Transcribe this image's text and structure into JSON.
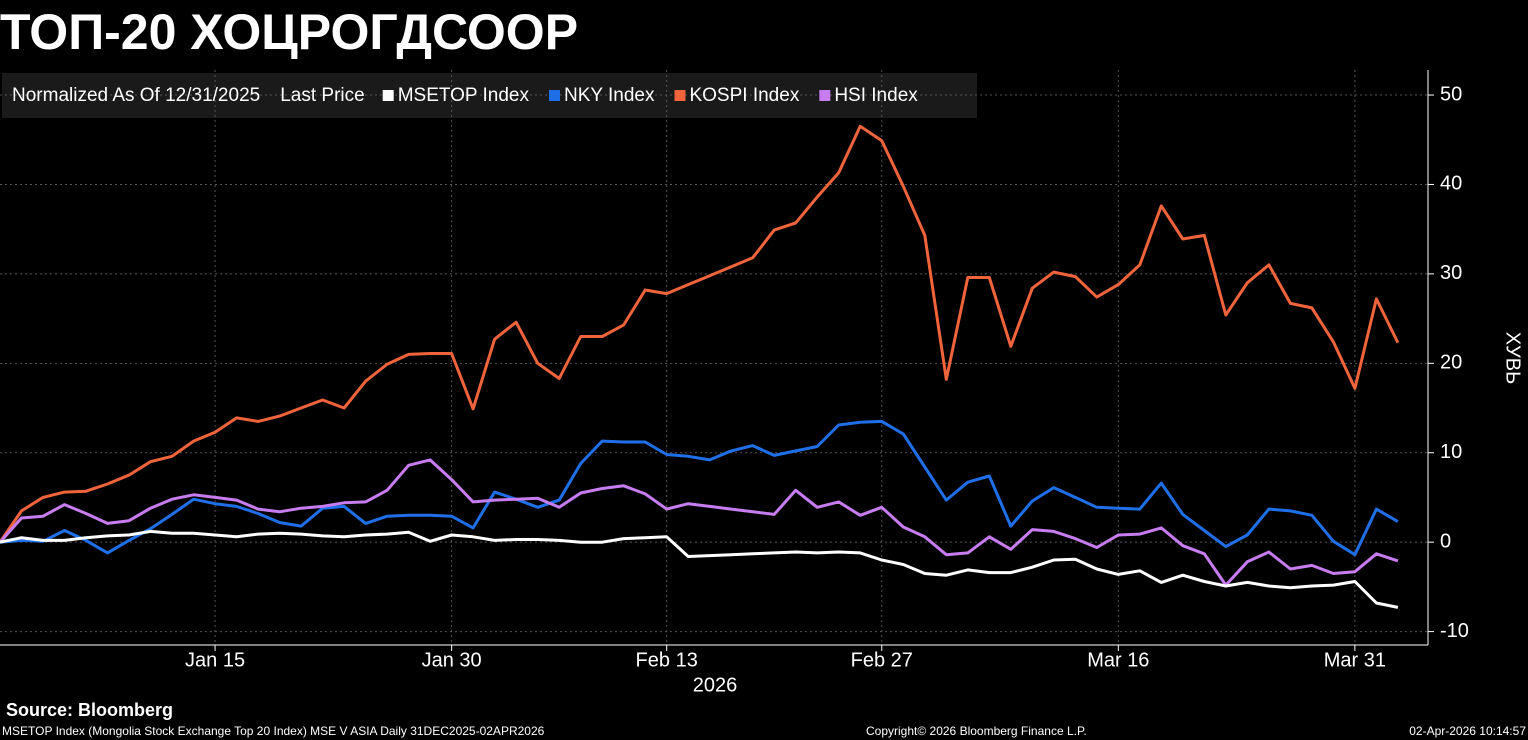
{
  "chart_data": {
    "type": "line",
    "title": "ТОП-20 ХОЦРОГДСООР",
    "legend_header": [
      "Normalized As Of 12/31/2025",
      "Last Price"
    ],
    "ylabel": "ХУВЬ",
    "xlabel": "2026",
    "source": "Source: Bloomberg",
    "description": "MSETOP Index (Mongolia Stock Exchange Top 20 Index) MSE V ASIA Daily 31DEC2025-02APR2026",
    "copyright": "Copyright© 2026 Bloomberg Finance L.P.",
    "timestamp": "02-Apr-2026 10:14:57",
    "ylim": [
      -11.5,
      52.8
    ],
    "yticks": [
      -10,
      0,
      10,
      20,
      30,
      40,
      50
    ],
    "xlim": [
      0,
      66.4
    ],
    "xticks": [
      {
        "value": 10,
        "label": "Jan 15"
      },
      {
        "value": 21,
        "label": "Jan 30"
      },
      {
        "value": 31,
        "label": "Feb 13"
      },
      {
        "value": 41,
        "label": "Feb 27"
      },
      {
        "value": 52,
        "label": "Mar 16"
      },
      {
        "value": 63,
        "label": "Mar 31"
      }
    ],
    "grid": true,
    "series": [
      {
        "name": "MSETOP Index",
        "color": "#ffffff",
        "values": [
          0,
          0.5,
          0.2,
          0.2,
          0.5,
          0.7,
          0.8,
          1.2,
          1,
          1,
          0.8,
          0.6,
          0.9,
          1,
          0.9,
          0.7,
          0.6,
          0.8,
          0.9,
          1.1,
          0.1,
          0.8,
          0.6,
          0.2,
          0.3,
          0.3,
          0.2,
          0,
          0,
          0.4,
          0.5,
          0.6,
          -1.6,
          -1.5,
          -1.4,
          -1.3,
          -1.2,
          -1.1,
          -1.2,
          -1.1,
          -1.2,
          -2,
          -2.5,
          -3.5,
          -3.7,
          -3.1,
          -3.4,
          -3.4,
          -2.8,
          -2,
          -1.9,
          -3,
          -3.6,
          -3.2,
          -4.5,
          -3.7,
          -4.4,
          -4.9,
          -4.5,
          -4.9,
          -5.1,
          -4.9,
          -4.8,
          -4.4,
          -6.8,
          -7.3
        ]
      },
      {
        "name": "NKY Index",
        "color": "#1f6fe8",
        "values": [
          0,
          0.2,
          0.1,
          1.3,
          0.2,
          -1.2,
          0.2,
          1.5,
          3.1,
          4.8,
          4.3,
          4,
          3.2,
          2.2,
          1.8,
          3.8,
          4,
          2.1,
          2.9,
          3,
          3,
          2.9,
          1.6,
          5.6,
          4.8,
          3.9,
          4.7,
          8.8,
          11.3,
          11.2,
          11.2,
          9.8,
          9.6,
          9.2,
          10.2,
          10.8,
          9.7,
          10.2,
          10.7,
          13.1,
          13.4,
          13.5,
          12.1,
          8.4,
          4.7,
          6.7,
          7.4,
          1.8,
          4.6,
          6.1,
          5,
          3.9,
          3.8,
          3.7,
          6.6,
          3.1,
          1.3,
          -0.5,
          0.8,
          3.7,
          3.5,
          3,
          0.1,
          -1.4,
          3.7,
          2.3
        ]
      },
      {
        "name": "KOSPI Index",
        "color": "#f0643c",
        "values": [
          0,
          3.5,
          5,
          5.6,
          5.7,
          6.5,
          7.5,
          9,
          9.6,
          11.3,
          12.3,
          13.9,
          13.5,
          14.1,
          15,
          15.9,
          15,
          18,
          19.9,
          21,
          21.1,
          21.1,
          14.9,
          22.7,
          24.6,
          20,
          18.3,
          23,
          23,
          24.3,
          28.2,
          27.8,
          28.8,
          29.8,
          30.8,
          31.8,
          34.9,
          35.7,
          38.6,
          41.3,
          46.5,
          44.9,
          39.8,
          34.3,
          18.2,
          29.6,
          29.6,
          21.9,
          28.4,
          30.2,
          29.7,
          27.4,
          28.8,
          31,
          37.6,
          33.9,
          34.3,
          25.4,
          29,
          31,
          26.7,
          26.2,
          22.4,
          17.2,
          27.2,
          22.3
        ]
      },
      {
        "name": "HSI Index",
        "color": "#c77cf0",
        "values": [
          0,
          2.7,
          2.9,
          4.2,
          3.2,
          2.1,
          2.4,
          3.8,
          4.8,
          5.3,
          5,
          4.7,
          3.7,
          3.4,
          3.8,
          4,
          4.4,
          4.5,
          5.8,
          8.6,
          9.2,
          7,
          4.5,
          4.7,
          4.8,
          4.9,
          3.9,
          5.5,
          6,
          6.3,
          5.4,
          3.7,
          4.3,
          4,
          3.7,
          3.4,
          3.1,
          5.8,
          3.9,
          4.5,
          3,
          3.9,
          1.7,
          0.6,
          -1.4,
          -1.2,
          0.6,
          -0.8,
          1.4,
          1.2,
          0.4,
          -0.6,
          0.8,
          0.9,
          1.6,
          -0.4,
          -1.3,
          -4.8,
          -2.2,
          -1.1,
          -3,
          -2.6,
          -3.5,
          -3.3,
          -1.3,
          -2.1
        ]
      }
    ]
  }
}
